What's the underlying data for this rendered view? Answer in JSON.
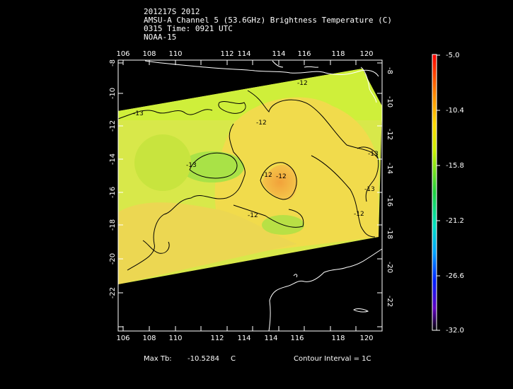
{
  "header": {
    "line1": "201217S 2012",
    "line2": "AMSU-A Channel 5 (53.6GHz) Brightness Temperature (C)",
    "line3": "0315 Time: 0921 UTC",
    "line4": "NOAA-15"
  },
  "map": {
    "lon_ticks": [
      "106",
      "108",
      "110",
      "112",
      "114",
      "116",
      "118",
      "120"
    ],
    "lat_ticks": [
      "-8",
      "-10",
      "-12",
      "-14",
      "-16",
      "-18",
      "-20",
      "-22"
    ],
    "contour_labels": [
      "-13",
      "-12",
      "-12",
      "-13",
      "-12",
      "-13",
      "-12",
      "-12",
      "-12",
      "-13"
    ]
  },
  "colorbar": {
    "labels": [
      "-5.0",
      "-10.4",
      "-15.8",
      "-21.2",
      "-26.6",
      "-32.0"
    ]
  },
  "footer": {
    "max_tb_label": "Max Tb:",
    "max_tb_value": "-10.5284",
    "max_tb_unit": "C",
    "contour_interval": "Contour Interval = 1C"
  }
}
